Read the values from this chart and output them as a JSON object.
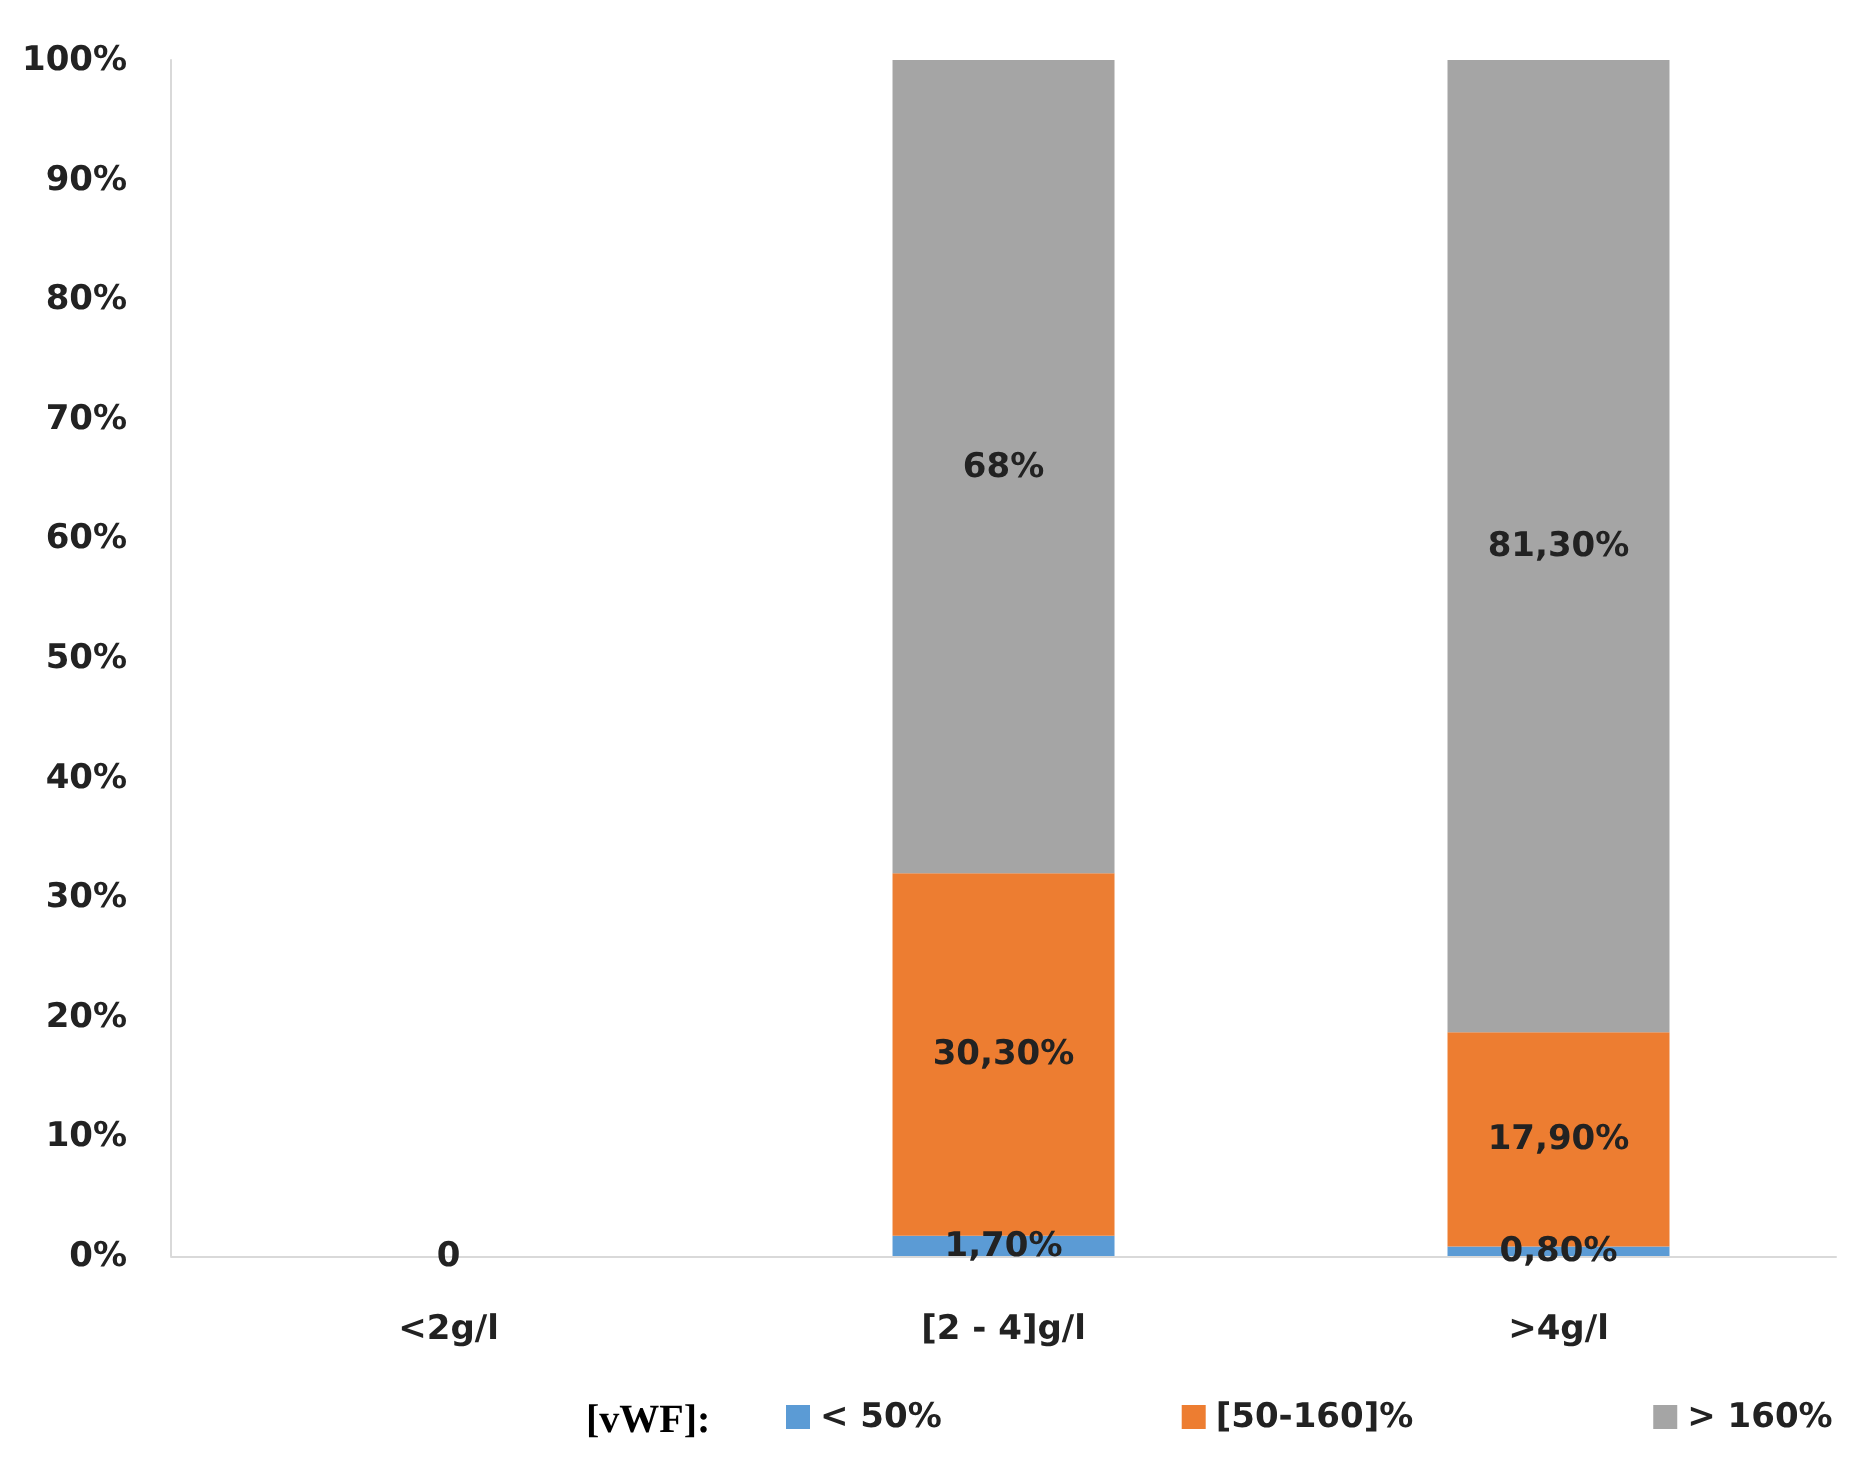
{
  "chart_data": {
    "type": "bar",
    "stacked": true,
    "categories": [
      "<2g/l",
      "[2 - 4]g/l",
      ">4g/l"
    ],
    "series": [
      {
        "name": "< 50%",
        "color": "#5b9bd5",
        "values": [
          0,
          1.7,
          0.8
        ],
        "value_labels": [
          "0",
          "1,70%",
          "0,80%"
        ]
      },
      {
        "name": "[50-160]%",
        "color": "#ed7d31",
        "values": [
          0,
          30.3,
          17.9
        ],
        "value_labels": [
          null,
          "30,30%",
          "17,90%"
        ]
      },
      {
        "name": "> 160%",
        "color": "#a5a5a5",
        "values": [
          0,
          68,
          81.3
        ],
        "value_labels": [
          null,
          "68%",
          "81,30%"
        ]
      }
    ],
    "legend_title": "[vWF]:",
    "legend": "bottom",
    "grid": false,
    "ylim": [
      0,
      100
    ],
    "yticks": [
      {
        "value": 0,
        "label": "0%"
      },
      {
        "value": 10,
        "label": "10%"
      },
      {
        "value": 20,
        "label": "20%"
      },
      {
        "value": 30,
        "label": "30%"
      },
      {
        "value": 40,
        "label": "40%"
      },
      {
        "value": 50,
        "label": "50%"
      },
      {
        "value": 60,
        "label": "60%"
      },
      {
        "value": 70,
        "label": "70%"
      },
      {
        "value": 80,
        "label": "80%"
      },
      {
        "value": 90,
        "label": "90%"
      },
      {
        "value": 100,
        "label": "100%"
      }
    ]
  }
}
